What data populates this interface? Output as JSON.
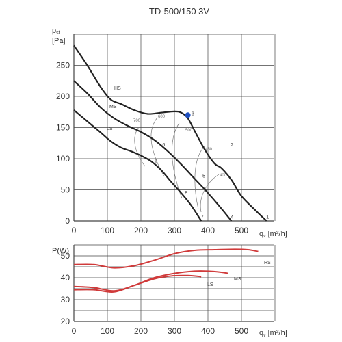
{
  "chart_data": [
    {
      "type": "line",
      "title": "TD-500/150 3V",
      "ylabel_main": "p",
      "ylabel_sub": "sf",
      "ylabel_unit": "[Pa]",
      "xlabel_main": "q",
      "xlabel_sub": "v",
      "xlabel_unit": "[m³/h]",
      "xlim": [
        0,
        600
      ],
      "ylim": [
        0,
        300
      ],
      "xticks": [
        "0",
        "100",
        "200",
        "300",
        "400",
        "500"
      ],
      "yticks": [
        "0",
        "50",
        "100",
        "150",
        "200",
        "250"
      ],
      "grid": true,
      "series": [
        {
          "name": "HS",
          "color": "#222222",
          "points": [
            [
              0,
              282
            ],
            [
              40,
              250
            ],
            [
              80,
              215
            ],
            [
              110,
              195
            ],
            [
              140,
              188
            ],
            [
              180,
              178
            ],
            [
              220,
              172
            ],
            [
              260,
              174
            ],
            [
              300,
              176
            ],
            [
              320,
              174
            ],
            [
              340,
              165
            ],
            [
              360,
              145
            ],
            [
              390,
              115
            ],
            [
              420,
              92
            ],
            [
              440,
              85
            ],
            [
              470,
              66
            ],
            [
              500,
              40
            ],
            [
              540,
              18
            ],
            [
              575,
              0
            ]
          ]
        },
        {
          "name": "MS",
          "color": "#222222",
          "points": [
            [
              0,
              225
            ],
            [
              40,
              205
            ],
            [
              80,
              182
            ],
            [
              120,
              165
            ],
            [
              160,
              153
            ],
            [
              200,
              143
            ],
            [
              240,
              130
            ],
            [
              280,
              112
            ],
            [
              320,
              91
            ],
            [
              360,
              68
            ],
            [
              400,
              45
            ],
            [
              440,
              20
            ],
            [
              470,
              0
            ]
          ]
        },
        {
          "name": "LS",
          "color": "#222222",
          "points": [
            [
              0,
              178
            ],
            [
              40,
              160
            ],
            [
              80,
              142
            ],
            [
              110,
              128
            ],
            [
              140,
              118
            ],
            [
              170,
              112
            ],
            [
              200,
              105
            ],
            [
              230,
              96
            ],
            [
              260,
              82
            ],
            [
              290,
              63
            ],
            [
              320,
              45
            ],
            [
              350,
              25
            ],
            [
              380,
              0
            ]
          ]
        }
      ],
      "rpm_lines": [
        {
          "label": "700",
          "points": [
            [
              0.0,
              0
            ]
          ]
        },
        {
          "label": "600",
          "points": [
            [
              0.0,
              0
            ]
          ]
        },
        {
          "label": "500",
          "points": [
            [
              0.0,
              0
            ]
          ]
        },
        {
          "label": "450",
          "points": [
            [
              0.0,
              0
            ]
          ]
        },
        {
          "label": "400",
          "points": [
            [
              0.0,
              0
            ]
          ]
        }
      ],
      "operating_point": {
        "x": 340,
        "y": 170,
        "color": "#1f4fbf"
      },
      "point_labels": [
        {
          "text": "1",
          "x": 578,
          "y": 4
        },
        {
          "text": "2",
          "x": 472,
          "y": 120
        },
        {
          "text": "3",
          "x": 355,
          "y": 170
        },
        {
          "text": "4",
          "x": 472,
          "y": 4
        },
        {
          "text": "5",
          "x": 388,
          "y": 70
        },
        {
          "text": "6",
          "x": 268,
          "y": 120
        },
        {
          "text": "7",
          "x": 383,
          "y": 4
        },
        {
          "text": "8",
          "x": 335,
          "y": 43
        },
        {
          "text": "9",
          "x": 245,
          "y": 93
        }
      ]
    },
    {
      "type": "line",
      "ylabel": "P(W)",
      "xlabel_main": "q",
      "xlabel_sub": "v",
      "xlabel_unit": "[m³/h]",
      "xlim": [
        0,
        600
      ],
      "ylim": [
        20,
        55
      ],
      "xticks": [
        "0",
        "100",
        "200",
        "300",
        "400",
        "500"
      ],
      "yticks": [
        "20",
        "30",
        "40",
        "50"
      ],
      "grid": true,
      "series": [
        {
          "name": "HS",
          "color": "#d03a3a",
          "points": [
            [
              0,
              46
            ],
            [
              60,
              46
            ],
            [
              120,
              44.5
            ],
            [
              180,
              45.5
            ],
            [
              240,
              48
            ],
            [
              300,
              51
            ],
            [
              360,
              52.5
            ],
            [
              420,
              52.8
            ],
            [
              480,
              53
            ],
            [
              520,
              52.8
            ],
            [
              550,
              52
            ]
          ]
        },
        {
          "name": "MS",
          "color": "#d03a3a",
          "points": [
            [
              0,
              36
            ],
            [
              60,
              35.5
            ],
            [
              120,
              34
            ],
            [
              180,
              36.5
            ],
            [
              240,
              40
            ],
            [
              300,
              42
            ],
            [
              360,
              43
            ],
            [
              400,
              43
            ],
            [
              440,
              42.5
            ],
            [
              460,
              42
            ]
          ]
        },
        {
          "name": "LS",
          "color": "#d03a3a",
          "points": [
            [
              0,
              34.5
            ],
            [
              60,
              34.5
            ],
            [
              120,
              33.5
            ],
            [
              180,
              36.5
            ],
            [
              240,
              39.5
            ],
            [
              290,
              40.8
            ],
            [
              340,
              41
            ],
            [
              380,
              40.5
            ]
          ]
        }
      ]
    }
  ]
}
